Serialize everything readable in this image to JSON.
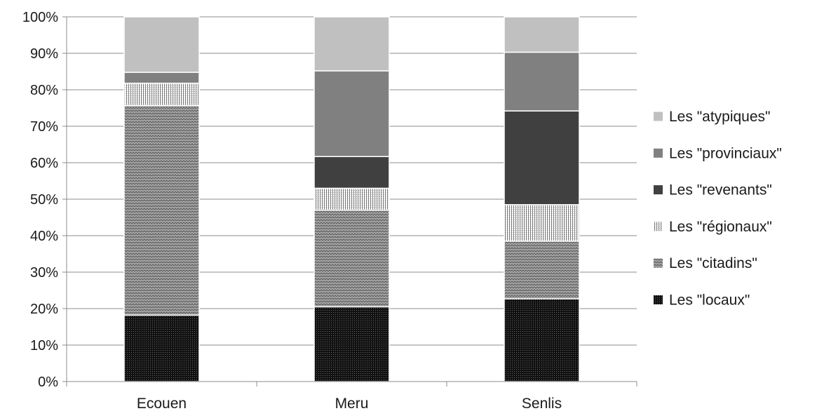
{
  "chart_data": {
    "type": "bar",
    "stacked": true,
    "percent": true,
    "categories": [
      "Ecouen",
      "Meru",
      "Senlis"
    ],
    "series": [
      {
        "name": "Les \"locaux\"",
        "values": [
          18.2,
          20.5,
          22.7
        ],
        "color": "#1c1c1c",
        "pattern": "dots-dark"
      },
      {
        "name": "Les \"citadins\"",
        "values": [
          57.5,
          26.5,
          15.8
        ],
        "color": "#8a8a8a",
        "pattern": "zigzag"
      },
      {
        "name": "Les \"régionaux\"",
        "values": [
          6.1,
          6.0,
          10.0
        ],
        "color": "#ffffff",
        "pattern": "vertical-lines"
      },
      {
        "name": "Les \"revenants\"",
        "values": [
          0,
          8.7,
          25.7
        ],
        "color": "#404040",
        "pattern": "solid"
      },
      {
        "name": "Les \"provinciaux\"",
        "values": [
          3.0,
          23.5,
          16.1
        ],
        "color": "#808080",
        "pattern": "solid"
      },
      {
        "name": "Les \"atypiques\"",
        "values": [
          15.2,
          14.8,
          9.7
        ],
        "color": "#c0c0c0",
        "pattern": "solid"
      }
    ],
    "yticks": [
      "0%",
      "10%",
      "20%",
      "30%",
      "40%",
      "50%",
      "60%",
      "70%",
      "80%",
      "90%",
      "100%"
    ],
    "ylim": [
      0,
      100
    ],
    "grid": true,
    "legend_position": "right",
    "title": "",
    "xlabel": "",
    "ylabel": ""
  }
}
